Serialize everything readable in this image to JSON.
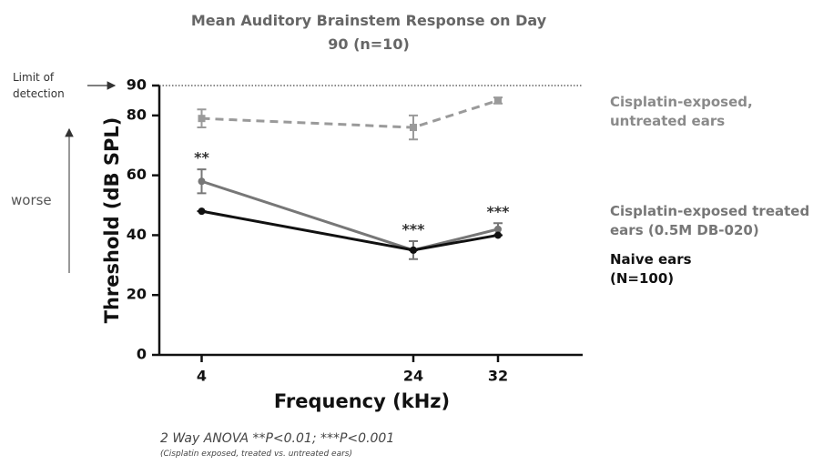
{
  "chart_data": {
    "type": "line",
    "title": "Mean Auditory Brainstem Response on Day 90 (n=10)",
    "x_label": "Frequency (kHz)",
    "y_label": "Threshold (dB SPL)",
    "x": [
      4,
      24,
      32
    ],
    "xlim": [
      0,
      40
    ],
    "xticks": [
      4,
      24,
      32
    ],
    "ylim": [
      0,
      90
    ],
    "yticks": [
      0,
      20,
      40,
      60,
      80,
      90
    ],
    "series": [
      {
        "name": "Cisplatin-exposed, untreated ears",
        "color": "#9a9a9a",
        "dashed": true,
        "values": [
          79,
          76,
          85
        ],
        "errors": [
          3,
          4,
          1
        ]
      },
      {
        "name": "Cisplatin-exposed treated ears (0.5M DB-020)",
        "color": "#777777",
        "dashed": false,
        "values": [
          58,
          35,
          42
        ],
        "errors": [
          4,
          3,
          2
        ]
      },
      {
        "name": "Naive ears (N=100)",
        "color": "#111111",
        "dashed": false,
        "values": [
          48,
          35,
          40
        ],
        "errors": [
          0,
          0,
          0
        ]
      }
    ],
    "significance": [
      {
        "x": 4,
        "label": "**"
      },
      {
        "x": 24,
        "label": "***"
      },
      {
        "x": 32,
        "label": "***"
      }
    ],
    "limit_of_detection": {
      "label": "Limit of detection",
      "value": 90
    },
    "direction_label": "worse",
    "footnote": "2 Way ANOVA **P<0.01; ***P<0.001",
    "footnote_detail": "(Cisplatin exposed, treated vs. untreated ears)"
  }
}
